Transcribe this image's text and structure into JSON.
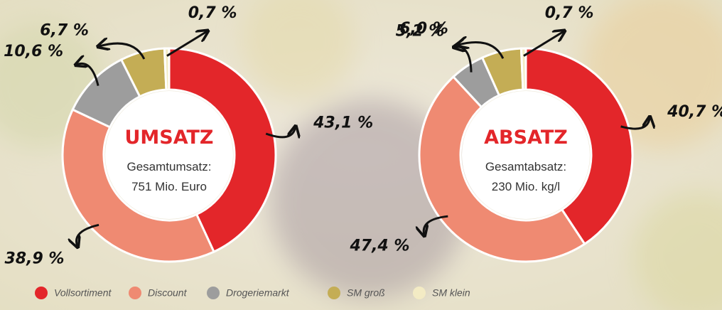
{
  "chart_data": [
    {
      "type": "pie",
      "title": "UMSATZ",
      "annotations": [
        "Gesamtumsatz:",
        "751 Mio. Euro"
      ],
      "categories": [
        "Vollsortiment",
        "Discount",
        "Drogeriemarkt",
        "SM groß",
        "SM klein"
      ],
      "values": [
        43.1,
        38.9,
        10.6,
        6.7,
        0.7
      ],
      "value_labels": [
        "43,1 %",
        "38,9 %",
        "10,6 %",
        "6,7 %",
        "0,7 %"
      ],
      "colors": [
        "#e3262a",
        "#ef8a72",
        "#9d9d9d",
        "#c4ad55",
        "#f3ebc4"
      ]
    },
    {
      "type": "pie",
      "title": "ABSATZ",
      "annotations": [
        "Gesamtabsatz:",
        "230 Mio. kg/l"
      ],
      "categories": [
        "Vollsortiment",
        "Discount",
        "Drogeriemarkt",
        "SM groß",
        "SM klein"
      ],
      "values": [
        40.7,
        47.4,
        5.2,
        6.0,
        0.7
      ],
      "value_labels": [
        "40,7 %",
        "47,4 %",
        "5,2 %",
        "6,0 %",
        "0,7 %"
      ],
      "colors": [
        "#e3262a",
        "#ef8a72",
        "#9d9d9d",
        "#c4ad55",
        "#f3ebc4"
      ]
    }
  ]
}
